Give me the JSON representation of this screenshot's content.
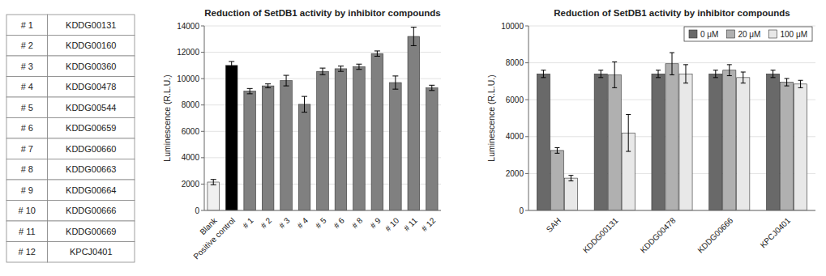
{
  "chart_data": [
    {
      "type": "table",
      "numbers": [
        "# 1",
        "# 2",
        "# 3",
        "# 4",
        "# 5",
        "# 6",
        "# 7",
        "# 8",
        "# 9",
        "# 10",
        "# 11",
        "# 12"
      ],
      "names": [
        "KDDG00131",
        "KDDG00160",
        "KDDG00360",
        "KDDG00478",
        "KDDG00544",
        "KDDG00659",
        "KDDG00660",
        "KDDG00663",
        "KDDG00664",
        "KDDG00666",
        "KDDG00669",
        "KPCJ0401"
      ]
    },
    {
      "type": "bar",
      "title": "Reduction of SetDB1 activity by inhibitor compounds",
      "y_label": "Luminescence (R.L.U.)",
      "categories": [
        "Blank",
        "Positive control",
        "# 1",
        "# 2",
        "# 3",
        "# 4",
        "# 5",
        "# 6",
        "# 8",
        "# 9",
        "# 10",
        "# 11",
        "# 12"
      ],
      "values": [
        2150,
        11000,
        9050,
        9450,
        9850,
        8050,
        10550,
        10750,
        10900,
        11900,
        9700,
        13200,
        9300
      ],
      "errors": [
        200,
        300,
        200,
        150,
        400,
        600,
        250,
        200,
        200,
        200,
        500,
        700,
        200
      ],
      "colors": [
        "#f0f0f0",
        "#000000",
        "#808080",
        "#808080",
        "#808080",
        "#808080",
        "#808080",
        "#808080",
        "#808080",
        "#808080",
        "#808080",
        "#808080",
        "#808080"
      ],
      "ylim": [
        0,
        14000
      ],
      "yticks": [
        0,
        2000,
        4000,
        6000,
        8000,
        10000,
        12000,
        14000
      ],
      "grid": true
    },
    {
      "type": "bar",
      "title": "Reduction of SetDB1 activity by inhibitor compounds",
      "y_label": "Luminescence (R.L.U.)",
      "categories": [
        "SAH",
        "KDDG00131",
        "KDDG00478",
        "KDDG00666",
        "KPCJ0401"
      ],
      "series": [
        {
          "name": "0 μM",
          "color": "#696969",
          "values": [
            7400,
            7400,
            7400,
            7400,
            7400
          ],
          "errors": [
            200,
            200,
            200,
            200,
            200
          ]
        },
        {
          "name": "20 μM",
          "color": "#b0b0b0",
          "values": [
            3250,
            7350,
            7950,
            7600,
            6950
          ],
          "errors": [
            150,
            700,
            600,
            300,
            200
          ]
        },
        {
          "name": "100 μM",
          "color": "#e8e8e8",
          "values": [
            1750,
            4200,
            7400,
            7200,
            6850
          ],
          "errors": [
            150,
            1000,
            500,
            300,
            200
          ]
        }
      ],
      "ylim": [
        0,
        10000
      ],
      "yticks": [
        0,
        2000,
        4000,
        6000,
        8000,
        10000
      ],
      "grid": true,
      "legend": "upper right"
    }
  ]
}
